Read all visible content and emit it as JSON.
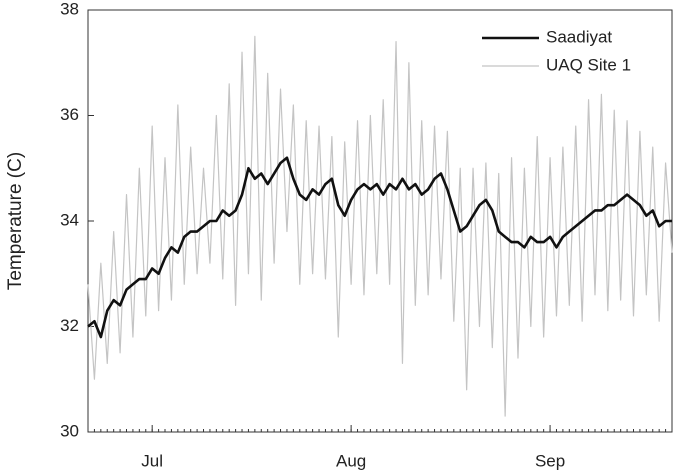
{
  "chart_data": {
    "type": "line",
    "y_label": "Temperature (C)",
    "x": [
      0,
      1,
      2,
      3,
      4,
      5,
      6,
      7,
      8,
      9,
      10,
      11,
      12,
      13,
      14,
      15,
      16,
      17,
      18,
      19,
      20,
      21,
      22,
      23,
      24,
      25,
      26,
      27,
      28,
      29,
      30,
      31,
      32,
      33,
      34,
      35,
      36,
      37,
      38,
      39,
      40,
      41,
      42,
      43,
      44,
      45,
      46,
      47,
      48,
      49,
      50,
      51,
      52,
      53,
      54,
      55,
      56,
      57,
      58,
      59,
      60,
      61,
      62,
      63,
      64,
      65,
      66,
      67,
      68,
      69,
      70,
      71,
      72,
      73,
      74,
      75,
      76,
      77,
      78,
      79,
      80,
      81,
      82,
      83,
      84,
      85,
      86,
      87,
      88,
      89,
      90,
      91
    ],
    "xlim": [
      0,
      91
    ],
    "xticks": [
      {
        "value": 10,
        "label": "Jul"
      },
      {
        "value": 41,
        "label": "Aug"
      },
      {
        "value": 72,
        "label": "Sep"
      }
    ],
    "ylim": [
      30,
      38
    ],
    "yticks": [
      30,
      32,
      34,
      36,
      38
    ],
    "legend": "upper right",
    "series": [
      {
        "name": "UAQ Site 1",
        "color": "#c4c4c4",
        "width": 1.2,
        "values": [
          32.8,
          31.0,
          33.2,
          31.3,
          33.8,
          31.5,
          34.5,
          31.8,
          35.0,
          32.2,
          35.8,
          32.3,
          35.2,
          32.5,
          36.2,
          32.8,
          35.4,
          33.0,
          35.0,
          33.2,
          36.0,
          32.9,
          36.6,
          32.4,
          37.2,
          33.0,
          37.5,
          32.5,
          36.8,
          33.2,
          36.5,
          33.8,
          36.2,
          32.8,
          35.9,
          33.0,
          35.8,
          32.9,
          35.6,
          31.8,
          35.5,
          32.8,
          35.9,
          32.6,
          36.0,
          33.0,
          36.3,
          32.8,
          37.4,
          31.3,
          37.0,
          32.4,
          35.9,
          32.6,
          35.8,
          32.9,
          35.7,
          32.1,
          35.0,
          30.8,
          35.0,
          32.0,
          35.1,
          31.6,
          34.9,
          30.3,
          35.2,
          31.4,
          35.0,
          32.0,
          35.6,
          31.8,
          35.2,
          32.2,
          35.4,
          32.4,
          35.8,
          32.1,
          36.3,
          32.6,
          36.4,
          32.3,
          36.1,
          32.5,
          35.9,
          32.2,
          35.7,
          32.6,
          35.4,
          32.1,
          35.1,
          33.4
        ]
      },
      {
        "name": "Saadiyat",
        "color": "#111111",
        "width": 2.6,
        "values": [
          32.0,
          32.1,
          31.8,
          32.3,
          32.5,
          32.4,
          32.7,
          32.8,
          32.9,
          32.9,
          33.1,
          33.0,
          33.3,
          33.5,
          33.4,
          33.7,
          33.8,
          33.8,
          33.9,
          34.0,
          34.0,
          34.2,
          34.1,
          34.2,
          34.5,
          35.0,
          34.8,
          34.9,
          34.7,
          34.9,
          35.1,
          35.2,
          34.8,
          34.5,
          34.4,
          34.6,
          34.5,
          34.7,
          34.8,
          34.3,
          34.1,
          34.4,
          34.6,
          34.7,
          34.6,
          34.7,
          34.5,
          34.7,
          34.6,
          34.8,
          34.6,
          34.7,
          34.5,
          34.6,
          34.8,
          34.9,
          34.6,
          34.2,
          33.8,
          33.9,
          34.1,
          34.3,
          34.4,
          34.2,
          33.8,
          33.7,
          33.6,
          33.6,
          33.5,
          33.7,
          33.6,
          33.6,
          33.7,
          33.5,
          33.7,
          33.8,
          33.9,
          34.0,
          34.1,
          34.2,
          34.2,
          34.3,
          34.3,
          34.4,
          34.5,
          34.4,
          34.3,
          34.1,
          34.2,
          33.9,
          34.0,
          34.0
        ]
      }
    ],
    "legend_order": [
      1,
      0
    ]
  }
}
